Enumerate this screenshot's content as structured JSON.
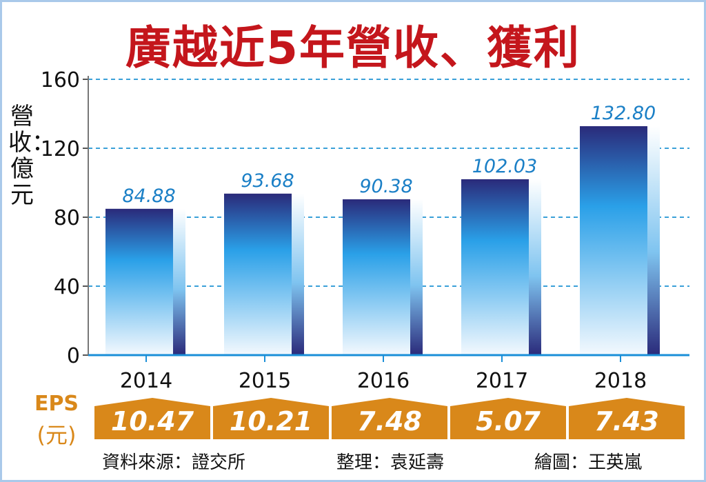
{
  "title": "廣越近5年營收、獲利",
  "chart_data": {
    "type": "bar",
    "title": "廣越近5年營收、獲利",
    "ylabel": "營收：億元",
    "ylim": [
      0,
      160
    ],
    "yticks": [
      "0",
      "40",
      "80",
      "120",
      "160"
    ],
    "categories": [
      "2014",
      "2015",
      "2016",
      "2017",
      "2018"
    ],
    "values": [
      84.88,
      93.68,
      90.38,
      102.03,
      132.8
    ],
    "value_labels": [
      "84.88",
      "93.68",
      "90.38",
      "102.03",
      "132.80"
    ],
    "grid": true,
    "eps": {
      "label": "EPS",
      "unit": "(元)",
      "values": [
        "10.47",
        "10.21",
        "7.48",
        "5.07",
        "7.43"
      ]
    }
  },
  "footer": {
    "source": "資料來源：證交所",
    "editor": "整理：袁延壽",
    "illustrator": "繪圖：王英嵐"
  },
  "colors": {
    "title": "#c4161c",
    "bar_top": "#2a2a7a",
    "bar_mid": "#2aa0e8",
    "bar_bottom": "#ffffff",
    "grid": "#3aa0d8",
    "eps_bar": "#d9881a",
    "value_label": "#1a7fc6"
  }
}
